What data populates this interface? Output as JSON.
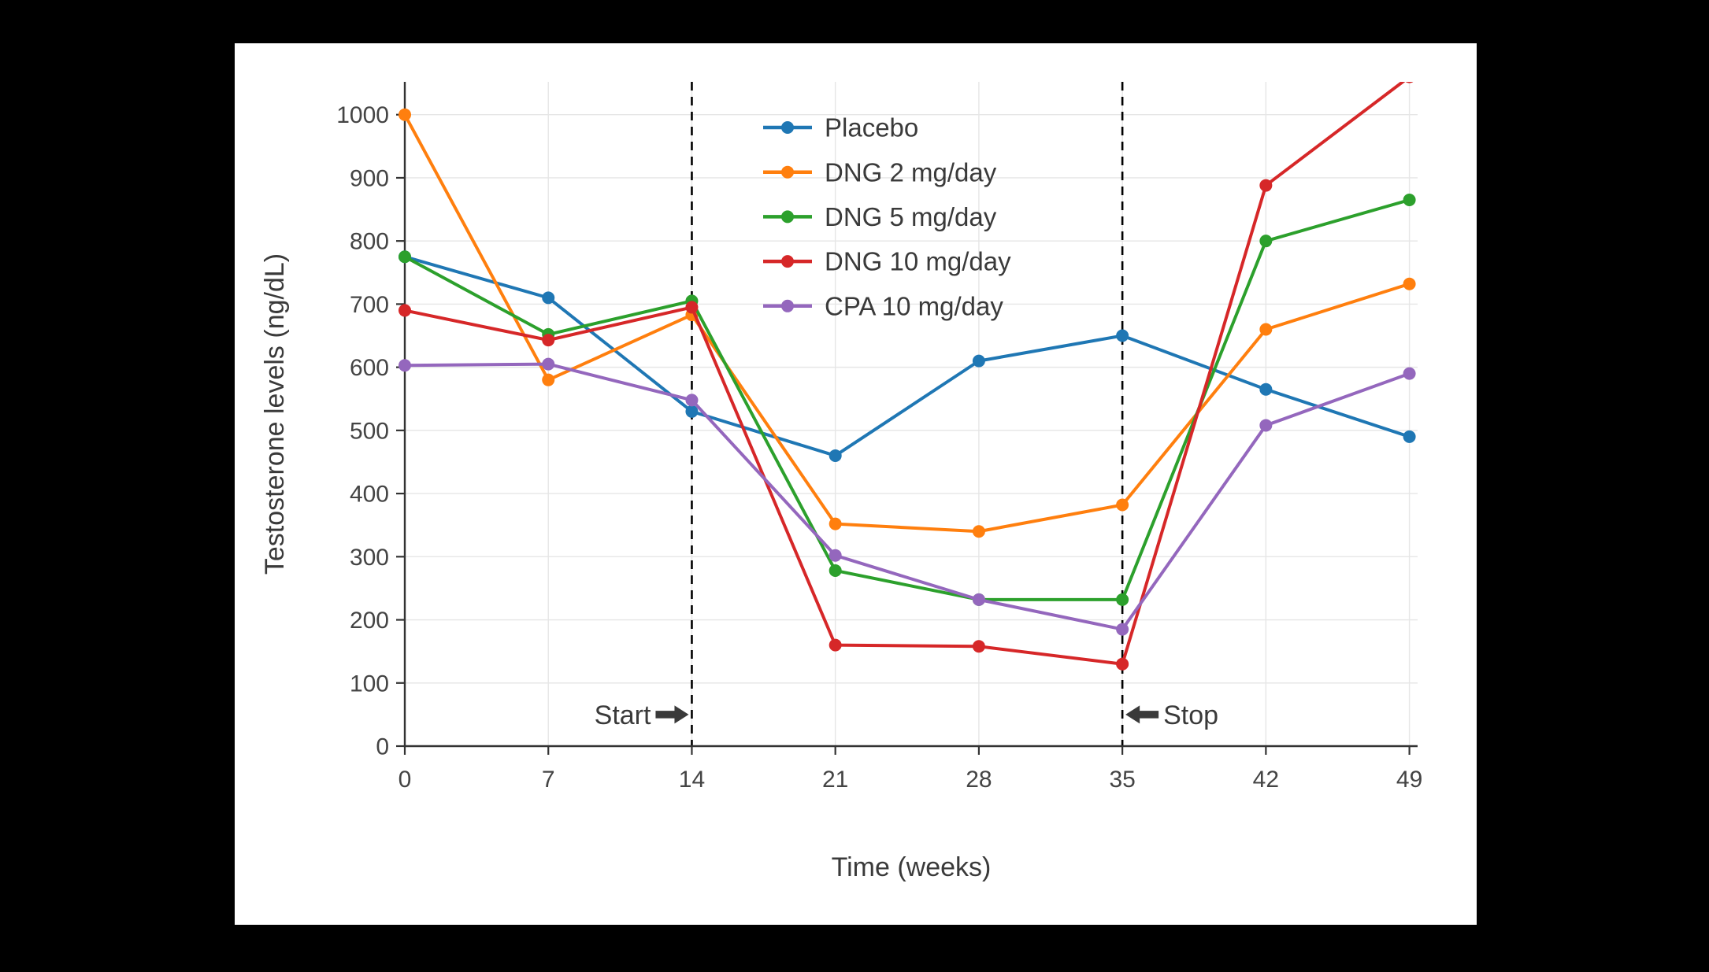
{
  "page": {
    "background": "#000000",
    "card_background": "#ffffff"
  },
  "chart_data": {
    "type": "line",
    "title": "",
    "xlabel": "Time (weeks)",
    "ylabel": "Testosterone levels (ng/dL)",
    "x": [
      0,
      7,
      14,
      21,
      28,
      35,
      42,
      49
    ],
    "xticks": [
      0,
      7,
      14,
      21,
      28,
      35,
      42,
      49
    ],
    "yticks": [
      0,
      100,
      200,
      300,
      400,
      500,
      600,
      700,
      800,
      900,
      1000
    ],
    "xlim": [
      0,
      49.4
    ],
    "ylim": [
      0,
      1052
    ],
    "grid": true,
    "legend_position": "top-center-inside",
    "series": [
      {
        "name": "Placebo",
        "color": "#1f77b4",
        "values": [
          775,
          710,
          530,
          460,
          610,
          650,
          565,
          490
        ]
      },
      {
        "name": "DNG 2 mg/day",
        "color": "#ff7f0e",
        "values": [
          1000,
          580,
          683,
          352,
          340,
          382,
          660,
          732
        ]
      },
      {
        "name": "DNG 5 mg/day",
        "color": "#2ca02c",
        "values": [
          775,
          652,
          705,
          278,
          232,
          232,
          800,
          865
        ]
      },
      {
        "name": "DNG 10 mg/day",
        "color": "#d62728",
        "values": [
          690,
          643,
          695,
          160,
          158,
          130,
          888,
          1060
        ]
      },
      {
        "name": "CPA 10 mg/day",
        "color": "#9467bd",
        "values": [
          603,
          605,
          548,
          302,
          232,
          185,
          508,
          590
        ]
      }
    ],
    "vlines": [
      {
        "x": 14,
        "style": "dashed",
        "color": "#000000"
      },
      {
        "x": 35,
        "style": "dashed",
        "color": "#000000"
      }
    ],
    "annotations": [
      {
        "text": "Start",
        "x": 14,
        "y": 50,
        "side": "left",
        "arrow": "right"
      },
      {
        "text": "Stop",
        "x": 35,
        "y": 50,
        "side": "right",
        "arrow": "left"
      }
    ],
    "style": {
      "grid_color": "#e6e6e6",
      "axis_color": "#333333",
      "tick_text_color": "#444444",
      "label_text_color": "#3a3a3a",
      "annotation_color": "#3a3a3a",
      "line_width": 4,
      "marker_radius": 8
    }
  }
}
